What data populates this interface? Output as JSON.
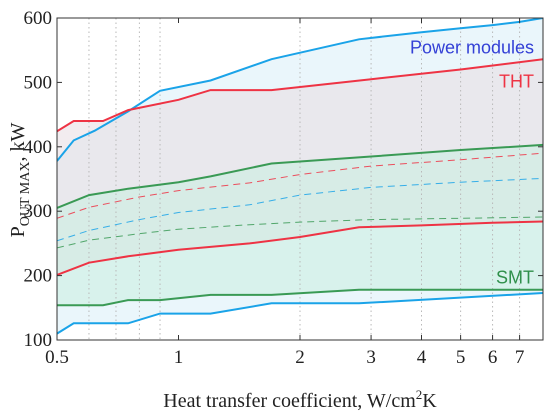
{
  "chart_data": {
    "type": "area",
    "xscale": "log",
    "xlim": [
      0.5,
      8
    ],
    "ylim": [
      100,
      600
    ],
    "x_ticks": [
      0.5,
      1,
      2,
      3,
      4,
      5,
      6,
      7
    ],
    "x_tick_labels": [
      "0.5",
      "1",
      "2",
      "3",
      "4",
      "5",
      "6",
      "7"
    ],
    "y_ticks": [
      100,
      200,
      300,
      400,
      500,
      600
    ],
    "y_tick_labels": [
      "100",
      "200",
      "300",
      "400",
      "500",
      "600"
    ],
    "xlabel_parts": {
      "main": "Heat transfer coefficient, W/cm",
      "sup": "2",
      "tail": "K"
    },
    "ylabel_parts": {
      "main": "P",
      "sub": "OUT MAX",
      "tail": ", kW"
    },
    "grid": "vertical dotted lines at 0.6, 0.7, 0.8, 0.9, 2, 3, 4, 5, 6, 7",
    "grid_x": [
      0.6,
      0.7,
      0.8,
      0.9,
      2,
      3,
      4,
      5,
      6,
      7
    ],
    "series": [
      {
        "name": "Power modules",
        "color": "#1aa3e8",
        "fill": "#d8eef8",
        "upper": {
          "x": [
            0.5,
            0.55,
            0.62,
            0.75,
            0.9,
            1.2,
            1.7,
            2.8,
            4,
            5,
            6,
            7,
            8
          ],
          "y": [
            378,
            410,
            425,
            455,
            487,
            503,
            536,
            567,
            578,
            584,
            589,
            594,
            600
          ]
        },
        "lower": {
          "x": [
            0.5,
            0.55,
            0.75,
            0.9,
            1.2,
            1.7,
            2.8,
            8
          ],
          "y": [
            110,
            126,
            126,
            141,
            141,
            157,
            157,
            173
          ]
        },
        "mid": {
          "x": [
            0.5,
            0.6,
            0.8,
            1.0,
            1.5,
            2.0,
            3.0,
            5.0,
            8.0
          ],
          "y": [
            254,
            270,
            287,
            298,
            310,
            325,
            337,
            345,
            351
          ]
        }
      },
      {
        "name": "THT",
        "color": "#ee3344",
        "fill": "#e8dde2",
        "upper": {
          "x": [
            0.5,
            0.55,
            0.65,
            0.75,
            1.0,
            1.2,
            1.7,
            3,
            5,
            8
          ],
          "y": [
            424,
            440,
            440,
            457,
            473,
            488,
            488,
            505,
            520,
            536
          ]
        },
        "lower": {
          "x": [
            0.5,
            0.6,
            0.75,
            1.0,
            1.5,
            2.0,
            2.8,
            4,
            6,
            8
          ],
          "y": [
            201,
            220,
            230,
            240,
            250,
            260,
            275,
            278,
            282,
            284
          ]
        },
        "mid": {
          "x": [
            0.5,
            0.6,
            0.8,
            1.0,
            1.5,
            2.0,
            3.0,
            5.0,
            8.0
          ],
          "y": [
            289,
            306,
            322,
            332,
            344,
            357,
            370,
            380,
            390
          ]
        }
      },
      {
        "name": "SMT",
        "color": "#3a9a55",
        "fill": "#c9eee0",
        "upper": {
          "x": [
            0.5,
            0.6,
            0.75,
            1.0,
            1.2,
            1.7,
            3,
            5,
            8
          ],
          "y": [
            305,
            325,
            335,
            345,
            354,
            374,
            385,
            395,
            403
          ]
        },
        "lower": {
          "x": [
            0.5,
            0.65,
            0.75,
            0.9,
            1.2,
            1.7,
            2.8,
            8
          ],
          "y": [
            154,
            154,
            162,
            162,
            170,
            170,
            178,
            178
          ]
        },
        "mid": {
          "x": [
            0.5,
            0.6,
            0.8,
            1.0,
            1.5,
            2.0,
            3.0,
            5.0,
            8.0
          ],
          "y": [
            243,
            255,
            265,
            272,
            279,
            283,
            287,
            289,
            291
          ]
        }
      }
    ],
    "labels": [
      {
        "text": "Power modules",
        "color": "#3340d6",
        "x": 7.6,
        "y": 545
      },
      {
        "text": "THT",
        "color": "#ee3344",
        "x": 7.6,
        "y": 492
      },
      {
        "text": "SMT",
        "color": "#2f8f4a",
        "x": 7.6,
        "y": 188
      }
    ]
  }
}
